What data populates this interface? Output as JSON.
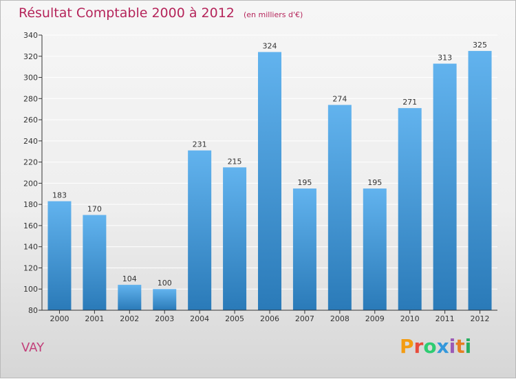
{
  "header": {
    "title": "Résultat Comptable 2000 à 2012",
    "subtitle": "(en milliers d'€)"
  },
  "footer": {
    "commune": "VAY",
    "logo_text": "Proxiti",
    "logo_colors": [
      "#f39c12",
      "#e74c3c",
      "#2ecc71",
      "#3498db",
      "#9b59b6",
      "#e67e22",
      "#27ae60"
    ]
  },
  "colors": {
    "bar_top": "#62b3ee",
    "bar_bottom": "#2a7ab8",
    "axis": "#333333",
    "grid": "#ffffff"
  },
  "chart_data": {
    "type": "bar",
    "title": "Résultat Comptable 2000 à 2012",
    "xlabel": "",
    "ylabel": "",
    "categories": [
      "2000",
      "2001",
      "2002",
      "2003",
      "2004",
      "2005",
      "2006",
      "2007",
      "2008",
      "2009",
      "2010",
      "2011",
      "2012"
    ],
    "values": [
      183,
      170,
      104,
      100,
      231,
      215,
      324,
      195,
      274,
      195,
      271,
      313,
      325
    ],
    "ylim": [
      80,
      340
    ],
    "yticks": [
      80,
      100,
      120,
      140,
      160,
      180,
      200,
      220,
      240,
      260,
      280,
      300,
      320,
      340
    ],
    "grid": true,
    "legend": "none"
  }
}
